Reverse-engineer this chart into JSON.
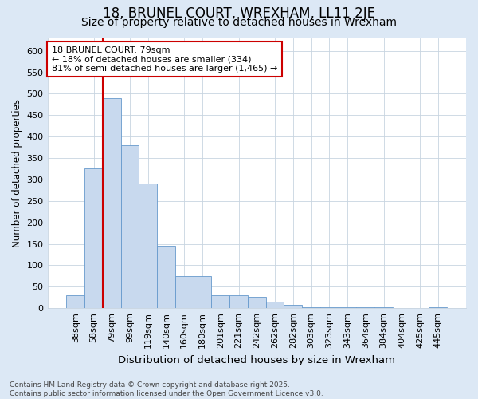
{
  "title": "18, BRUNEL COURT, WREXHAM, LL11 2JE",
  "subtitle": "Size of property relative to detached houses in Wrexham",
  "xlabel": "Distribution of detached houses by size in Wrexham",
  "ylabel": "Number of detached properties",
  "categories": [
    "38sqm",
    "58sqm",
    "79sqm",
    "99sqm",
    "119sqm",
    "140sqm",
    "160sqm",
    "180sqm",
    "201sqm",
    "221sqm",
    "242sqm",
    "262sqm",
    "282sqm",
    "303sqm",
    "323sqm",
    "343sqm",
    "364sqm",
    "384sqm",
    "404sqm",
    "425sqm",
    "445sqm"
  ],
  "values": [
    30,
    325,
    490,
    380,
    290,
    145,
    75,
    75,
    30,
    30,
    27,
    15,
    8,
    3,
    3,
    3,
    2,
    2,
    1,
    1,
    2
  ],
  "bar_color": "#c8d9ee",
  "bar_edge_color": "#6699cc",
  "grid_color": "#c8d4e0",
  "plot_bg_color": "#ffffff",
  "figure_bg_color": "#dce8f5",
  "annotation_box_text": "18 BRUNEL COURT: 79sqm\n← 18% of detached houses are smaller (334)\n81% of semi-detached houses are larger (1,465) →",
  "annotation_box_facecolor": "#ffffff",
  "annotation_box_edgecolor": "#cc0000",
  "vline_color": "#cc0000",
  "vline_x_index": 2,
  "ylim": [
    0,
    630
  ],
  "yticks": [
    0,
    50,
    100,
    150,
    200,
    250,
    300,
    350,
    400,
    450,
    500,
    550,
    600
  ],
  "footer": "Contains HM Land Registry data © Crown copyright and database right 2025.\nContains public sector information licensed under the Open Government Licence v3.0.",
  "title_fontsize": 12,
  "subtitle_fontsize": 10,
  "xlabel_fontsize": 9.5,
  "ylabel_fontsize": 8.5,
  "tick_fontsize": 8,
  "annotation_fontsize": 8,
  "footer_fontsize": 6.5
}
